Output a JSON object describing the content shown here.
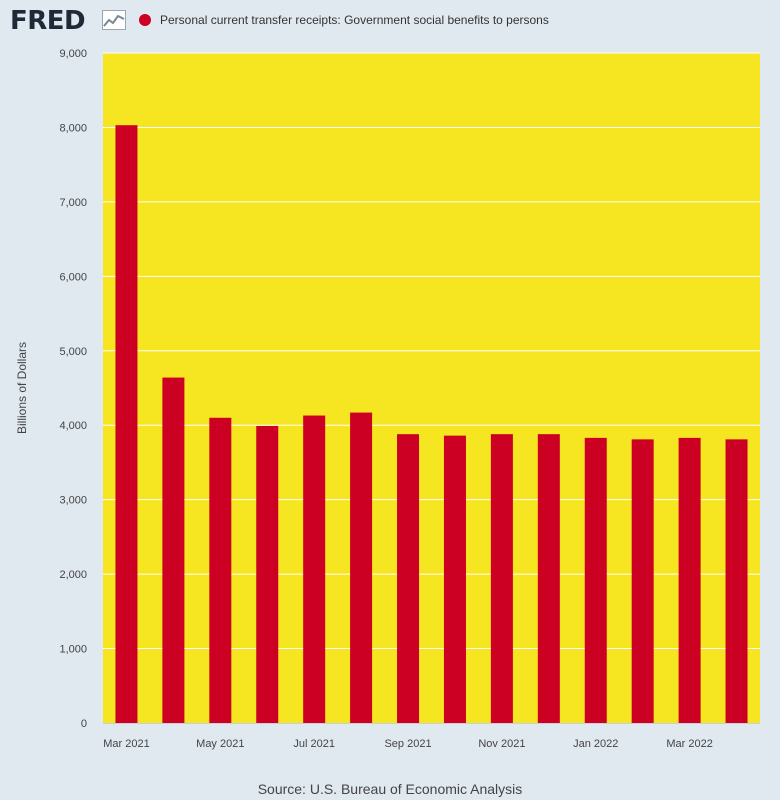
{
  "brand": {
    "logo_text": "FRED",
    "mark_icon": "line-graph-icon"
  },
  "legend": {
    "label": "Personal current transfer receipts: Government social benefits to persons"
  },
  "colors": {
    "plot_background": "#f6e521",
    "bar": "#cc0022",
    "page_background": "#e1e9f0",
    "grid": "#ffffff"
  },
  "source": "Source: U.S. Bureau of Economic Analysis",
  "chart_data": {
    "type": "bar",
    "title": "",
    "xlabel": "",
    "ylabel": "Billions of Dollars",
    "ylim": [
      0,
      9000
    ],
    "y_ticks": [
      0,
      1000,
      2000,
      3000,
      4000,
      5000,
      6000,
      7000,
      8000,
      9000
    ],
    "y_tick_labels": [
      "0",
      "1,000",
      "2,000",
      "3,000",
      "4,000",
      "5,000",
      "6,000",
      "7,000",
      "8,000",
      "9,000"
    ],
    "x_tick_labels": [
      "Mar 2021",
      "May 2021",
      "Jul 2021",
      "Sep 2021",
      "Nov 2021",
      "Jan 2022",
      "Mar 2022"
    ],
    "grid": true,
    "categories": [
      "2021-03",
      "2021-04",
      "2021-05",
      "2021-06",
      "2021-07",
      "2021-08",
      "2021-09",
      "2021-10",
      "2021-11",
      "2021-12",
      "2022-01",
      "2022-02",
      "2022-03",
      "2022-04"
    ],
    "series": [
      {
        "name": "Personal current transfer receipts: Government social benefits to persons",
        "values": [
          8030,
          4640,
          4100,
          3990,
          4130,
          4170,
          3880,
          3860,
          3880,
          3880,
          3830,
          3810,
          3830,
          3810
        ]
      }
    ]
  }
}
